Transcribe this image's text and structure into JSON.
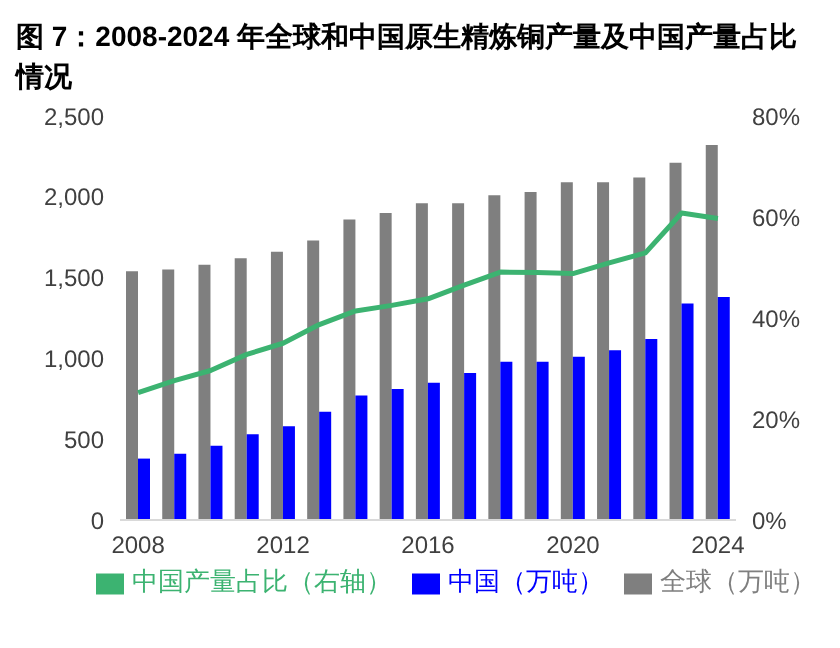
{
  "chart_data": {
    "type": "bar",
    "title": "图 7：2008-2024 年全球和中国原生精炼铜产量及中国产量占比情况",
    "categories": [
      "2008",
      null,
      null,
      null,
      "2012",
      null,
      null,
      null,
      "2016",
      null,
      null,
      null,
      "2020",
      null,
      null,
      null,
      "2024"
    ],
    "series": [
      {
        "name": "全球（万吨）",
        "color": "#7f7f7f",
        "values": [
          1540,
          1550,
          1580,
          1620,
          1660,
          1730,
          1860,
          1900,
          1960,
          1960,
          2010,
          2030,
          2090,
          2090,
          2120,
          2210,
          2320
        ]
      },
      {
        "name": "中国（万吨）",
        "color": "#0000ff",
        "values": [
          380,
          410,
          460,
          530,
          580,
          670,
          770,
          810,
          850,
          910,
          980,
          980,
          1010,
          1050,
          1120,
          1340,
          1380
        ]
      },
      {
        "name": "中国产量占比（右轴）",
        "type": "line",
        "axis": "y2",
        "color": "#3cb371",
        "values": [
          25.2,
          27.6,
          29.6,
          32.8,
          35.0,
          38.7,
          41.4,
          42.5,
          43.8,
          46.5,
          49.1,
          49.0,
          48.8,
          50.9,
          52.9,
          60.8,
          59.7
        ]
      }
    ],
    "ylim": [
      0,
      2500
    ],
    "yticks": [
      0,
      500,
      {
        "value": 1000,
        "label": "1,000"
      },
      {
        "value": 1500,
        "label": "1,500"
      },
      {
        "value": 2000,
        "label": "2,000"
      },
      {
        "value": 2500,
        "label": "2,500"
      }
    ],
    "y2lim": [
      0,
      80
    ],
    "y2ticks": [
      {
        "value": 0,
        "label": "0%"
      },
      {
        "value": 20,
        "label": "20%"
      },
      {
        "value": 40,
        "label": "40%"
      },
      {
        "value": 60,
        "label": "60%"
      },
      {
        "value": 80,
        "label": "80%"
      }
    ],
    "legend": "bottom",
    "marker": "none",
    "grid": false
  }
}
